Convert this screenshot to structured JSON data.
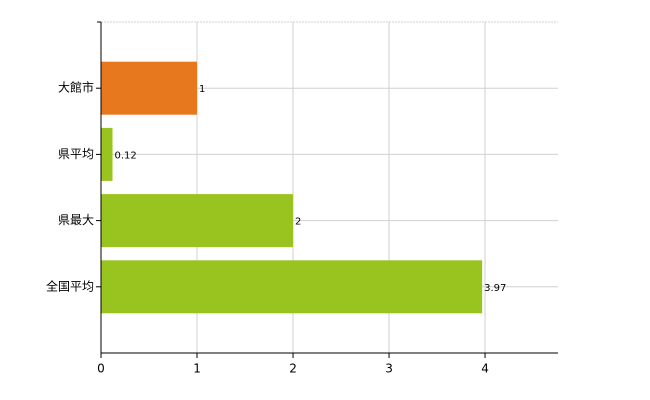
{
  "chart_data": {
    "type": "bar",
    "orientation": "horizontal",
    "categories": [
      "大館市",
      "県平均",
      "県最大",
      "全国平均"
    ],
    "values": [
      1,
      0.12,
      2,
      3.97
    ],
    "colors": [
      "#e8781e",
      "#99c31e",
      "#99c31e",
      "#99c31e"
    ],
    "xlim": [
      0,
      4.76
    ],
    "xticks": [
      0,
      1,
      2,
      3,
      4
    ],
    "grid": true
  }
}
